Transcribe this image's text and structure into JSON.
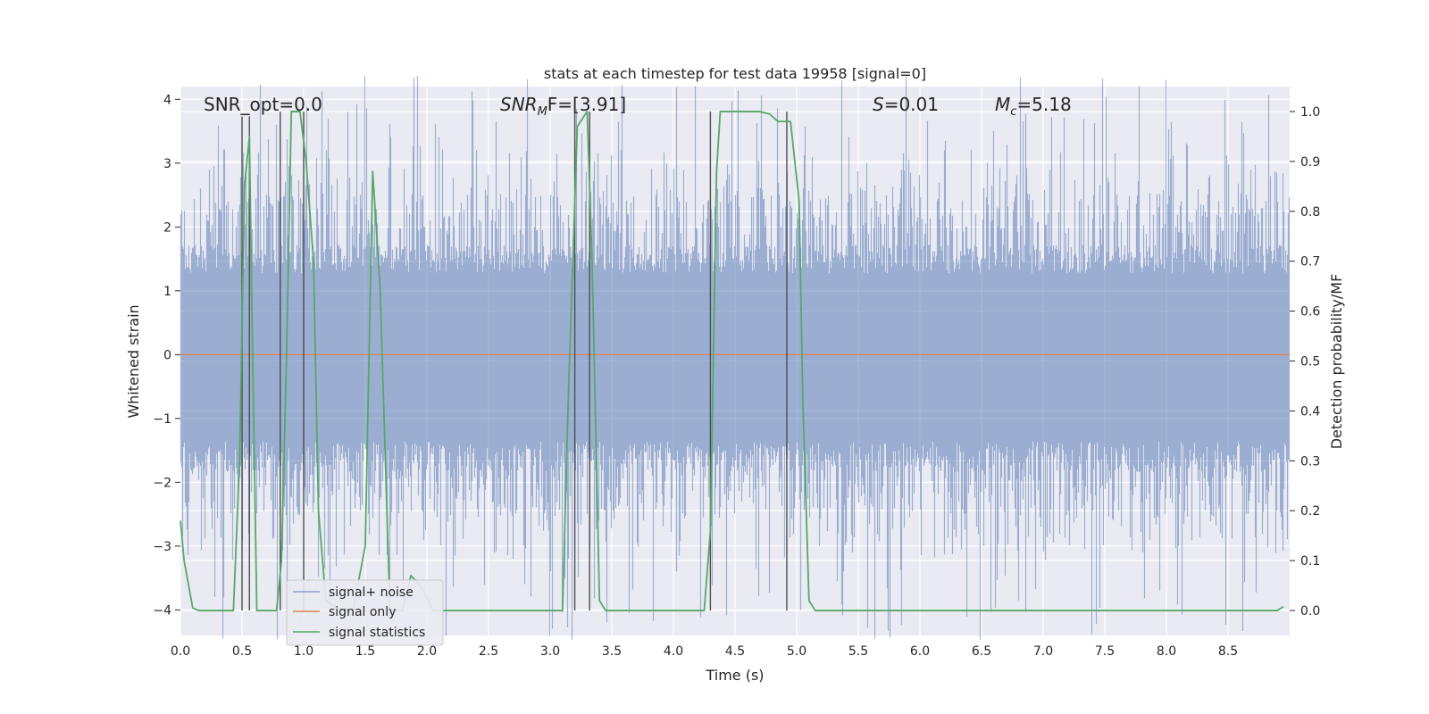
{
  "chart_data": {
    "type": "line",
    "title": "stats at each timestep for test data 19958 [signal=0]",
    "xlabel": "Time (s)",
    "ylabel": "Whitened strain",
    "ylabel_right": "Detection probability/MF",
    "xlim": [
      0.0,
      9.0
    ],
    "ylim": [
      -4.4,
      4.2
    ],
    "ylim_right": [
      -0.05,
      1.05
    ],
    "x_ticks": [
      0.0,
      0.5,
      1.0,
      1.5,
      2.0,
      2.5,
      3.0,
      3.5,
      4.0,
      4.5,
      5.0,
      5.5,
      6.0,
      6.5,
      7.0,
      7.5,
      8.0,
      8.5
    ],
    "x_tick_labels": [
      "0.0",
      "0.5",
      "1.0",
      "1.5",
      "2.0",
      "2.5",
      "3.0",
      "3.5",
      "4.0",
      "4.5",
      "5.0",
      "5.5",
      "6.0",
      "6.5",
      "7.0",
      "7.5",
      "8.0",
      "8.5"
    ],
    "y_ticks": [
      4,
      3,
      2,
      1,
      0,
      -1,
      -2,
      -3,
      -4
    ],
    "y_tick_labels": [
      "4",
      "3",
      "2",
      "1",
      "0",
      "−1",
      "−2",
      "−3",
      "−4"
    ],
    "y_ticks_right": [
      1.0,
      0.9,
      0.8,
      0.7,
      0.6,
      0.5,
      0.4,
      0.3,
      0.2,
      0.1,
      0.0
    ],
    "y_tick_labels_right": [
      "1.0",
      "0.9",
      "0.8",
      "0.7",
      "0.6",
      "0.5",
      "0.4",
      "0.3",
      "0.2",
      "0.1",
      "0.0"
    ],
    "grid": true,
    "legend_position": "lower-left",
    "annotations": {
      "snr_opt": "SNR_opt=0.0",
      "snr_mf_sym": "SNR",
      "snr_mf_sub": "M",
      "snr_mf_tail": "F=[3.91]",
      "s_sym": "S",
      "s_val": "=0.01",
      "mc_sym": "M",
      "mc_sub": "c",
      "mc_val": "=5.18"
    },
    "series": [
      {
        "name": "signal+ noise",
        "color": "#4c72b0",
        "axis": "left",
        "duration_s": 9.0,
        "envelope_quantiles": [
          {
            "low": -1.6,
            "high": 1.5
          },
          {
            "low": -2.2,
            "high": 2.2
          },
          {
            "low": -2.8,
            "high": 2.8
          },
          {
            "low": -3.9,
            "high": 3.8
          }
        ]
      },
      {
        "name": "signal only",
        "color": "#dd8452",
        "axis": "left",
        "x": [
          0.0,
          9.0
        ],
        "y": [
          0.0,
          0.0
        ]
      },
      {
        "name": "signal statistics",
        "color": "#55a868",
        "axis": "right",
        "x": [
          0.0,
          0.03,
          0.1,
          0.15,
          0.2,
          0.3,
          0.43,
          0.48,
          0.52,
          0.56,
          0.58,
          0.62,
          0.67,
          0.72,
          0.78,
          0.82,
          0.86,
          0.9,
          0.97,
          1.02,
          1.08,
          1.12,
          1.18,
          1.3,
          1.4,
          1.5,
          1.56,
          1.62,
          1.7,
          1.8,
          1.87,
          1.95,
          2.05,
          2.2,
          2.5,
          3.0,
          3.1,
          3.15,
          3.22,
          3.3,
          3.34,
          3.4,
          3.45,
          3.6,
          4.0,
          4.25,
          4.3,
          4.35,
          4.38,
          4.5,
          4.7,
          4.78,
          4.85,
          4.95,
          5.02,
          5.05,
          5.1,
          5.15,
          5.5,
          6.0,
          7.0,
          8.0,
          8.9,
          8.95
        ],
        "y": [
          0.18,
          0.1,
          0.005,
          0.0,
          0.0,
          0.0,
          0.0,
          0.3,
          0.85,
          0.95,
          0.6,
          0.0,
          0.0,
          0.0,
          0.0,
          0.1,
          0.5,
          1.0,
          1.0,
          0.9,
          0.7,
          0.2,
          0.02,
          0.0,
          0.0,
          0.13,
          0.88,
          0.65,
          0.0,
          0.0,
          0.07,
          0.05,
          0.0,
          0.0,
          0.0,
          0.0,
          0.0,
          0.45,
          0.97,
          1.0,
          0.7,
          0.02,
          0.0,
          0.0,
          0.0,
          0.0,
          0.16,
          0.88,
          1.0,
          1.0,
          1.0,
          0.995,
          0.98,
          0.98,
          0.82,
          0.42,
          0.02,
          0.0,
          0.0,
          0.0,
          0.0,
          0.0,
          0.0,
          0.008
        ]
      }
    ],
    "markers": [
      {
        "x": 0.5,
        "top": 0.99,
        "bottom": 0.0
      },
      {
        "x": 0.56,
        "top": 0.99,
        "bottom": 0.0
      },
      {
        "x": 0.81,
        "top": 1.0,
        "bottom": 0.0
      },
      {
        "x": 1.0,
        "top": 1.0,
        "bottom": 0.0
      },
      {
        "x": 3.2,
        "top": 1.0,
        "bottom": 0.0
      },
      {
        "x": 3.32,
        "top": 1.0,
        "bottom": 0.0
      },
      {
        "x": 4.3,
        "top": 1.0,
        "bottom": 0.0
      },
      {
        "x": 4.92,
        "top": 1.0,
        "bottom": 0.0
      }
    ],
    "marker_color": "#4d4d4d"
  }
}
